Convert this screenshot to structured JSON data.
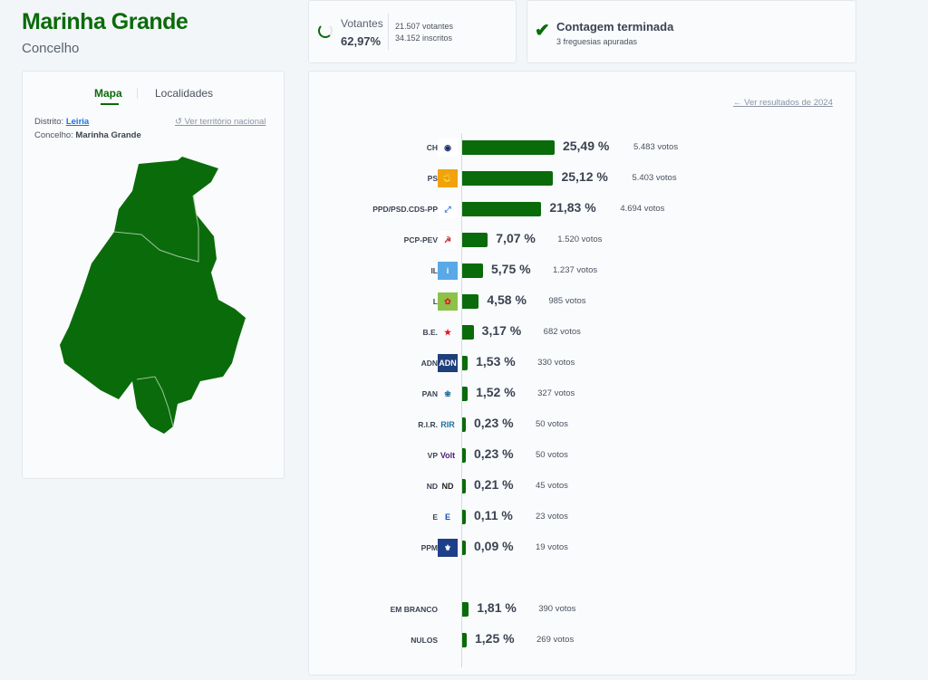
{
  "header": {
    "title": "Marinha Grande",
    "subtitle": "Concelho"
  },
  "turnout": {
    "label": "Votantes",
    "percent": "62,97%",
    "voters": "21.507 votantes",
    "registered": "34.152 inscritos"
  },
  "count": {
    "title": "Contagem terminada",
    "subtitle": "3 freguesias apuradas"
  },
  "map_panel": {
    "tabs": [
      "Mapa",
      "Localidades"
    ],
    "district_label": "Distrito:",
    "district": "Leiria",
    "municipality_label": "Concelho:",
    "municipality": "Marinha Grande",
    "national_link": "Ver território nacional",
    "map_color": "#0a6b0a"
  },
  "results": {
    "prev_link": "Ver resultados de 2024",
    "parties": [
      {
        "name": "CH",
        "pct": 25.49,
        "pct_label": "25,49 %",
        "votes": "5.483 votos",
        "logo": "chega-logo"
      },
      {
        "name": "PS",
        "pct": 25.12,
        "pct_label": "25,12 %",
        "votes": "5.403 votos",
        "logo": "ps-fist-logo"
      },
      {
        "name": "PPD/PSD.CDS-PP",
        "pct": 21.83,
        "pct_label": "21,83 %",
        "votes": "4.694 votos",
        "logo": "ad-logo"
      },
      {
        "name": "PCP-PEV",
        "pct": 7.07,
        "pct_label": "7,07 %",
        "votes": "1.520 votos",
        "logo": "cdu-logo"
      },
      {
        "name": "IL",
        "pct": 5.75,
        "pct_label": "5,75 %",
        "votes": "1.237 votos",
        "logo": "il-logo"
      },
      {
        "name": "L",
        "pct": 4.58,
        "pct_label": "4,58 %",
        "votes": "985 votos",
        "logo": "livre-logo"
      },
      {
        "name": "B.E.",
        "pct": 3.17,
        "pct_label": "3,17 %",
        "votes": "682 votos",
        "logo": "be-star-logo"
      },
      {
        "name": "ADN",
        "pct": 1.53,
        "pct_label": "1,53 %",
        "votes": "330 votos",
        "logo": "adn-logo"
      },
      {
        "name": "PAN",
        "pct": 1.52,
        "pct_label": "1,52 %",
        "votes": "327 votos",
        "logo": "pan-logo"
      },
      {
        "name": "R.I.R.",
        "pct": 0.23,
        "pct_label": "0,23 %",
        "votes": "50 votos",
        "logo": "rir-logo"
      },
      {
        "name": "VP",
        "pct": 0.23,
        "pct_label": "0,23 %",
        "votes": "50 votos",
        "logo": "volt-logo"
      },
      {
        "name": "ND",
        "pct": 0.21,
        "pct_label": "0,21 %",
        "votes": "45 votos",
        "logo": "nd-logo"
      },
      {
        "name": "E",
        "pct": 0.11,
        "pct_label": "0,11 %",
        "votes": "23 votos",
        "logo": "ergue-te-logo"
      },
      {
        "name": "PPM",
        "pct": 0.09,
        "pct_label": "0,09 %",
        "votes": "19 votos",
        "logo": "ppm-logo"
      }
    ],
    "other": [
      {
        "name": "EM BRANCO",
        "pct": 1.81,
        "pct_label": "1,81 %",
        "votes": "390 votos"
      },
      {
        "name": "NULOS",
        "pct": 1.25,
        "pct_label": "1,25 %",
        "votes": "269 votos"
      }
    ],
    "bar_color": "#0a6b0a"
  }
}
